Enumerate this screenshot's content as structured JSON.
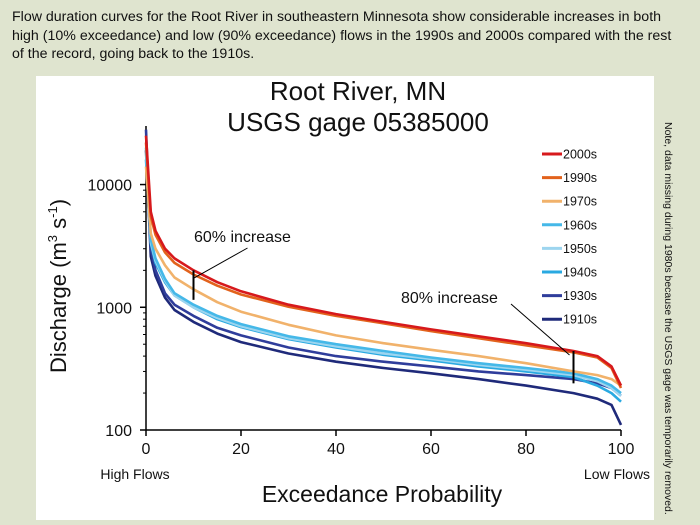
{
  "caption": "Flow duration curves for the Root River in southeastern Minnesota show considerable increases in both high (10% exceedance) and low (90% exceedance) flows in the 1990s and 2000s compared with the rest of the record, going back to the 1910s.",
  "side_note": "Note, data missing during 1980s because the USGS gage was temporarily removed.",
  "chart_data": {
    "type": "line",
    "title": "Root River, MN",
    "subtitle": "USGS gage 05385000",
    "xlabel": "Exceedance Probability",
    "ylabel": "Discharge (m³ s⁻¹)",
    "ylabel_parts": {
      "base": "Discharge (m",
      "sup1": "3",
      "mid": " s",
      "sup2": "-1",
      "end": ")"
    },
    "xlim": [
      0,
      100
    ],
    "ylim": [
      100,
      30000
    ],
    "y_scale": "log",
    "x_ticks": [
      0,
      20,
      40,
      60,
      80,
      100
    ],
    "y_ticks": [
      100,
      1000,
      10000
    ],
    "x_end_labels": {
      "left": "High Flows",
      "right": "Low Flows"
    },
    "legend_position": "top-right",
    "annotations": [
      {
        "text": "60% increase",
        "x": 10,
        "y_low": 1150,
        "y_high": 2000
      },
      {
        "text": "80% increase",
        "x": 90,
        "y_low": 240,
        "y_high": 440
      }
    ],
    "x": [
      0,
      1,
      2,
      4,
      6,
      10,
      15,
      20,
      30,
      40,
      50,
      60,
      70,
      80,
      90,
      95,
      98,
      100
    ],
    "series": [
      {
        "name": "2000s",
        "color": "#d7191c",
        "values": [
          25000,
          6000,
          4200,
          3000,
          2500,
          2000,
          1600,
          1350,
          1050,
          880,
          760,
          660,
          580,
          510,
          440,
          400,
          330,
          230
        ]
      },
      {
        "name": "1990s",
        "color": "#e2621c",
        "values": [
          22000,
          5500,
          3900,
          2800,
          2300,
          1850,
          1500,
          1270,
          1010,
          850,
          740,
          640,
          560,
          490,
          430,
          390,
          320,
          220
        ]
      },
      {
        "name": "1970s",
        "color": "#f1b26b",
        "values": [
          14000,
          4000,
          3000,
          2200,
          1750,
          1400,
          1100,
          920,
          720,
          590,
          510,
          450,
          400,
          350,
          300,
          280,
          260,
          230
        ]
      },
      {
        "name": "1960s",
        "color": "#45b8e8",
        "values": [
          20000,
          3600,
          2500,
          1700,
          1300,
          1050,
          850,
          730,
          580,
          500,
          440,
          390,
          350,
          320,
          290,
          260,
          230,
          200
        ]
      },
      {
        "name": "1950s",
        "color": "#9dd5ef",
        "values": [
          18000,
          3400,
          2400,
          1650,
          1250,
          1000,
          820,
          700,
          560,
          480,
          420,
          380,
          340,
          310,
          280,
          250,
          220,
          190
        ]
      },
      {
        "name": "1940s",
        "color": "#29a9e1",
        "values": [
          16000,
          3300,
          2300,
          1600,
          1250,
          1000,
          800,
          690,
          550,
          470,
          410,
          370,
          330,
          300,
          270,
          230,
          200,
          170
        ]
      },
      {
        "name": "1930s",
        "color": "#2f3d9b",
        "values": [
          28000,
          3000,
          2000,
          1300,
          1050,
          850,
          680,
          590,
          470,
          400,
          360,
          330,
          300,
          280,
          260,
          240,
          220,
          190
        ]
      },
      {
        "name": "1910s",
        "color": "#1f2a7a",
        "values": [
          19000,
          2600,
          1800,
          1200,
          950,
          760,
          610,
          520,
          420,
          360,
          320,
          290,
          260,
          230,
          200,
          180,
          160,
          110
        ]
      }
    ]
  }
}
